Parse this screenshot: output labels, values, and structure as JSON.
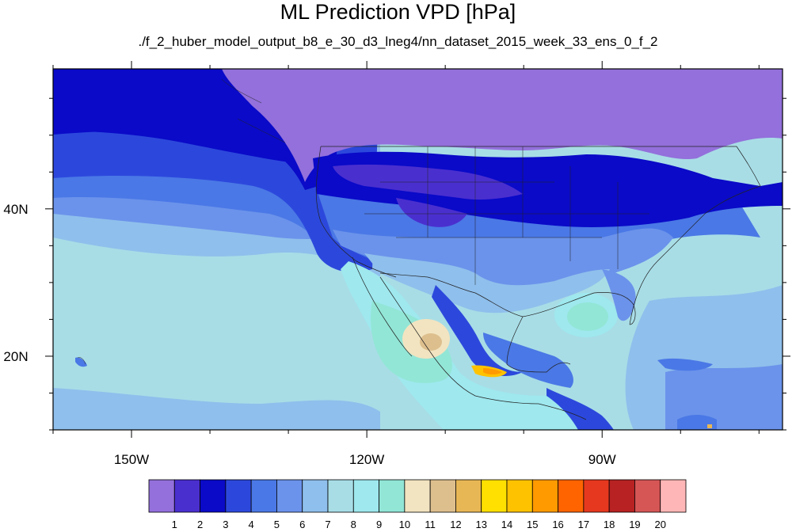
{
  "title": "ML Prediction VPD [hPa]",
  "subtitle": "./f_2_huber_model_output_b8_e_30_d3_lneg4/nn_dataset_2015_week_33_ens_0_f_2",
  "map": {
    "lon_range": [
      -160,
      -67
    ],
    "lat_range": [
      10,
      59
    ],
    "lon_ticks": [
      {
        "value": -150,
        "label": "150W"
      },
      {
        "value": -120,
        "label": "120W"
      },
      {
        "value": -90,
        "label": "90W"
      }
    ],
    "lat_ticks": [
      {
        "value": 40,
        "label": "40N"
      },
      {
        "value": 20,
        "label": "20N"
      }
    ]
  },
  "colorbar": {
    "labels": [
      "1",
      "2",
      "3",
      "4",
      "5",
      "6",
      "7",
      "8",
      "9",
      "10",
      "11",
      "12",
      "13",
      "14",
      "15",
      "16",
      "17",
      "18",
      "19",
      "20"
    ],
    "colors": [
      "#9370db",
      "#4a2fcf",
      "#0a0ac8",
      "#2c48dc",
      "#4a78e6",
      "#6b93eb",
      "#8fbfec",
      "#a8dde6",
      "#9ee8ee",
      "#92e6d6",
      "#f2e4c0",
      "#ddbf8e",
      "#e8b755",
      "#ffe000",
      "#ffc200",
      "#ff9a00",
      "#ff6400",
      "#e6381e",
      "#b82222",
      "#d65656",
      "#ffb6b6"
    ]
  }
}
